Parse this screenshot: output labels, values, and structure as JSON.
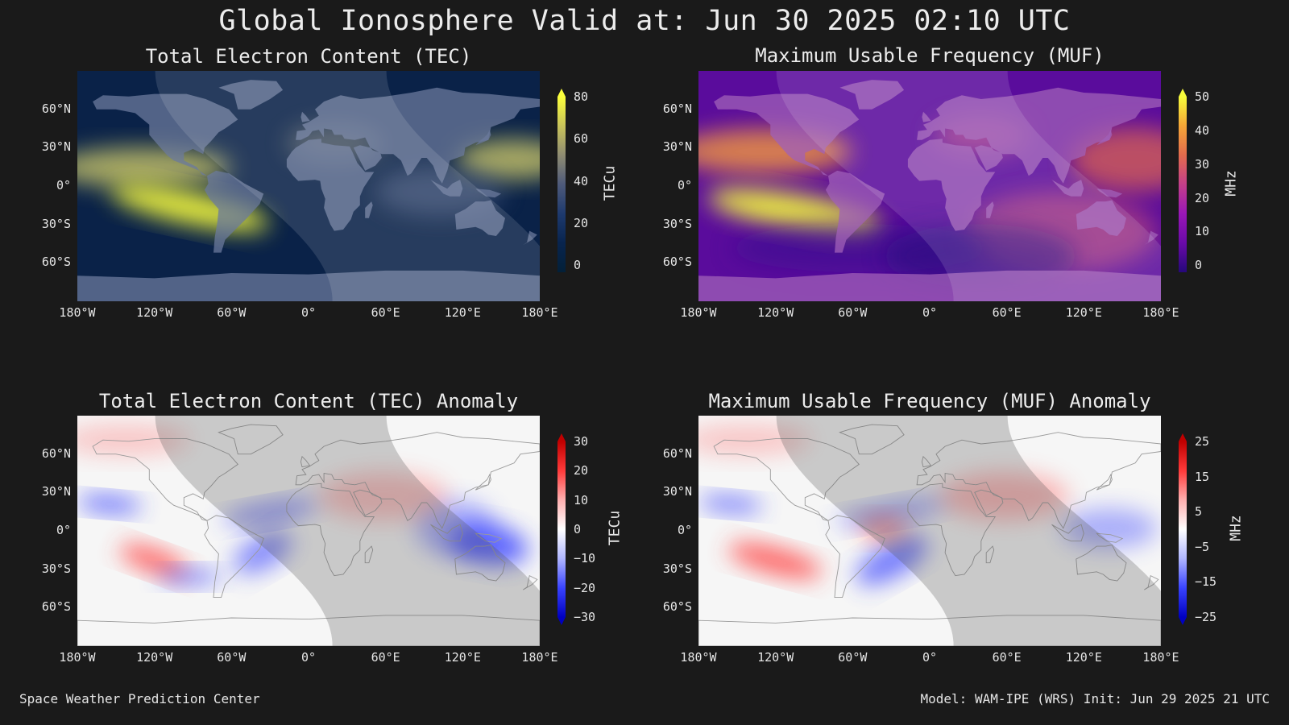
{
  "title": "Global Ionosphere Valid at: Jun 30 2025 02:10 UTC",
  "footer": {
    "left": "Space Weather Prediction Center",
    "right": "Model: WAM-IPE (WRS) Init: Jun 29 2025 21 UTC"
  },
  "lat_labels": [
    "60°N",
    "30°N",
    "0°",
    "30°S",
    "60°S"
  ],
  "lon_labels": [
    "180°W",
    "120°W",
    "60°W",
    "0°",
    "60°E",
    "120°E",
    "180°E"
  ],
  "panels": [
    {
      "title": "Total Electron Content (TEC)",
      "colorbar": {
        "label": "TECu",
        "ticks": [
          "80",
          "60",
          "40",
          "20",
          "0"
        ],
        "colors": [
          "#fbff3c",
          "#c9c35a",
          "#8f8c72",
          "#4e5a7a",
          "#1e3a6e",
          "#08244e",
          "#032038"
        ]
      },
      "ocean": "#0a2248",
      "land": "#6b7a9c",
      "style": "tec"
    },
    {
      "title": "Maximum Usable Frequency (MUF)",
      "colorbar": {
        "label": "MHz",
        "ticks": [
          "50",
          "40",
          "30",
          "20",
          "10",
          "0"
        ],
        "colors": [
          "#f6fb3a",
          "#f5a637",
          "#e46b4d",
          "#c43f8a",
          "#9a17b8",
          "#6a0aa8",
          "#25087a"
        ]
      },
      "ocean": "#5a0c9c",
      "land": "#a060b8",
      "style": "muf"
    },
    {
      "title": "Total Electron Content (TEC) Anomaly",
      "colorbar": {
        "label": "TECu",
        "ticks": [
          "30",
          "20",
          "10",
          "0",
          "−10",
          "−20",
          "−30"
        ],
        "colors": [
          "#c00000",
          "#ff3a3a",
          "#ffb0b0",
          "#ffffff",
          "#b0b6ff",
          "#3a44ff",
          "#0000c0"
        ]
      },
      "ocean": "#f6f6f6",
      "land": "#d8d8d8",
      "style": "anom"
    },
    {
      "title": "Maximum Usable Frequency (MUF) Anomaly",
      "colorbar": {
        "label": "MHz",
        "ticks": [
          "25",
          "15",
          "5",
          "−5",
          "−15",
          "−25"
        ],
        "colors": [
          "#c00000",
          "#ff3a3a",
          "#ffb0b0",
          "#ffffff",
          "#b0b6ff",
          "#3a44ff",
          "#0000c0"
        ]
      },
      "ocean": "#f6f6f6",
      "land": "#d8d8d8",
      "style": "anom"
    }
  ]
}
